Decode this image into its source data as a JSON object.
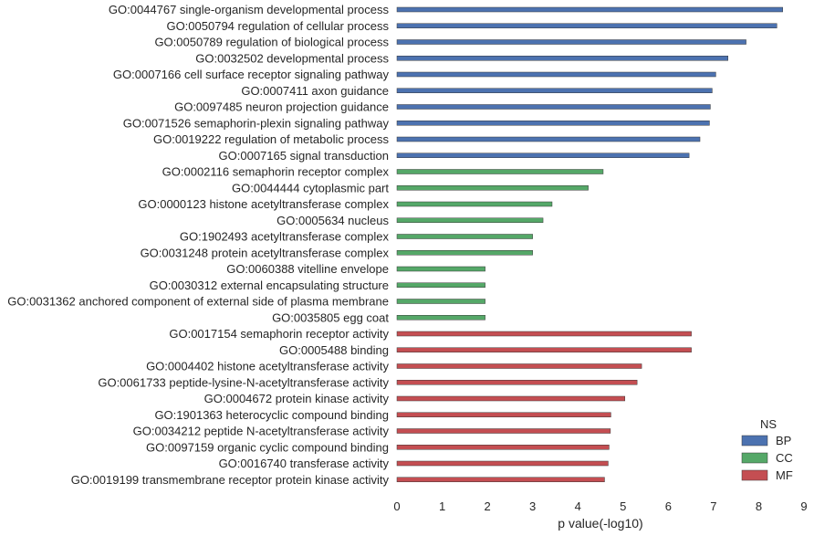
{
  "chart_data": {
    "type": "bar",
    "orientation": "horizontal",
    "xlabel": "p value(-log10)",
    "xlim": [
      0,
      9
    ],
    "xticks": [
      0,
      1,
      2,
      3,
      4,
      5,
      6,
      7,
      8,
      9
    ],
    "grid": false,
    "legend": {
      "title": "NS",
      "placement": "lower-right",
      "entries": [
        {
          "name": "BP",
          "color": "#4c72b0"
        },
        {
          "name": "CC",
          "color": "#55a868"
        },
        {
          "name": "MF",
          "color": "#c44e52"
        }
      ]
    },
    "bars": [
      {
        "label": "GO:0044767 single-organism developmental process",
        "value": 8.53,
        "ns": "BP"
      },
      {
        "label": "GO:0050794 regulation of cellular process",
        "value": 8.4,
        "ns": "BP"
      },
      {
        "label": "GO:0050789 regulation of biological process",
        "value": 7.72,
        "ns": "BP"
      },
      {
        "label": "GO:0032502 developmental process",
        "value": 7.32,
        "ns": "BP"
      },
      {
        "label": "GO:0007166 cell surface receptor signaling pathway",
        "value": 7.05,
        "ns": "BP"
      },
      {
        "label": "GO:0007411 axon guidance",
        "value": 6.97,
        "ns": "BP"
      },
      {
        "label": "GO:0097485 neuron projection guidance",
        "value": 6.93,
        "ns": "BP"
      },
      {
        "label": "GO:0071526 semaphorin-plexin signaling pathway",
        "value": 6.91,
        "ns": "BP"
      },
      {
        "label": "GO:0019222 regulation of metabolic process",
        "value": 6.7,
        "ns": "BP"
      },
      {
        "label": "GO:0007165 signal transduction",
        "value": 6.46,
        "ns": "BP"
      },
      {
        "label": "GO:0002116 semaphorin receptor complex",
        "value": 4.56,
        "ns": "CC"
      },
      {
        "label": "GO:0044444 cytoplasmic part",
        "value": 4.23,
        "ns": "CC"
      },
      {
        "label": "GO:0000123 histone acetyltransferase complex",
        "value": 3.43,
        "ns": "CC"
      },
      {
        "label": "GO:0005634 nucleus",
        "value": 3.23,
        "ns": "CC"
      },
      {
        "label": "GO:1902493 acetyltransferase complex",
        "value": 3.0,
        "ns": "CC"
      },
      {
        "label": "GO:0031248 protein acetyltransferase complex",
        "value": 3.0,
        "ns": "CC"
      },
      {
        "label": "GO:0060388 vitelline envelope",
        "value": 1.95,
        "ns": "CC"
      },
      {
        "label": "GO:0030312 external encapsulating structure",
        "value": 1.95,
        "ns": "CC"
      },
      {
        "label": "GO:0031362 anchored component of external side of plasma membrane",
        "value": 1.95,
        "ns": "CC"
      },
      {
        "label": "GO:0035805 egg coat",
        "value": 1.95,
        "ns": "CC"
      },
      {
        "label": "GO:0017154 semaphorin receptor activity",
        "value": 6.51,
        "ns": "MF"
      },
      {
        "label": "GO:0005488 binding",
        "value": 6.51,
        "ns": "MF"
      },
      {
        "label": "GO:0004402 histone acetyltransferase activity",
        "value": 5.41,
        "ns": "MF"
      },
      {
        "label": "GO:0061733 peptide-lysine-N-acetyltransferase activity",
        "value": 5.31,
        "ns": "MF"
      },
      {
        "label": "GO:0004672 protein kinase activity",
        "value": 5.04,
        "ns": "MF"
      },
      {
        "label": "GO:1901363 heterocyclic compound binding",
        "value": 4.73,
        "ns": "MF"
      },
      {
        "label": "GO:0034212 peptide N-acetyltransferase activity",
        "value": 4.72,
        "ns": "MF"
      },
      {
        "label": "GO:0097159 organic cyclic compound binding",
        "value": 4.69,
        "ns": "MF"
      },
      {
        "label": "GO:0016740 transferase activity",
        "value": 4.67,
        "ns": "MF"
      },
      {
        "label": "GO:0019199 transmembrane receptor protein kinase activity",
        "value": 4.59,
        "ns": "MF"
      }
    ]
  }
}
